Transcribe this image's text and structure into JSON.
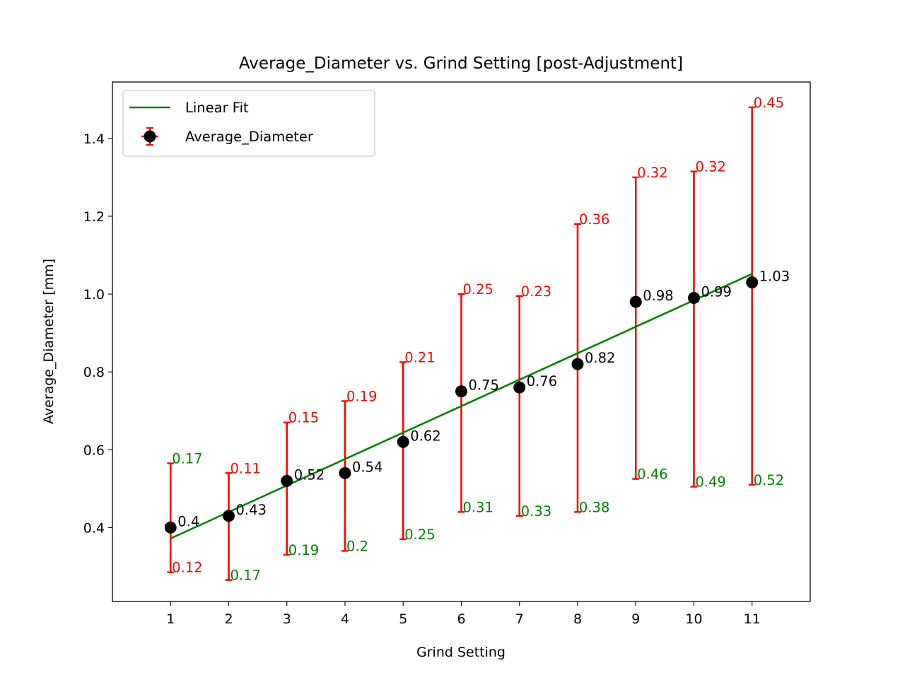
{
  "chart_data": {
    "type": "scatter",
    "title": "Average_Diameter vs. Grind Setting [post-Adjustment]",
    "xlabel": "Grind Setting",
    "ylabel": "Average_Diameter [mm]",
    "xlim": [
      0,
      12
    ],
    "ylim": [
      0.21,
      1.545
    ],
    "xticks": [
      1,
      2,
      3,
      4,
      5,
      6,
      7,
      8,
      9,
      10,
      11
    ],
    "xtick_labels": [
      "1",
      "2",
      "3",
      "4",
      "5",
      "6",
      "7",
      "8",
      "9",
      "10",
      "11"
    ],
    "yticks": [
      0.4,
      0.6,
      0.8,
      1.0,
      1.2,
      1.4
    ],
    "ytick_labels": [
      "0.4",
      "0.6",
      "0.8",
      "1.0",
      "1.2",
      "1.4"
    ],
    "grid": false,
    "legend": {
      "placement": "upper-left",
      "entries": [
        "Linear Fit",
        "Average_Diameter"
      ]
    },
    "series": [
      {
        "name": "Average_Diameter",
        "kind": "errorbar",
        "color": "#000000",
        "errorbar_color": "#ff0000",
        "x": [
          1,
          2,
          3,
          4,
          5,
          6,
          7,
          8,
          9,
          10,
          11
        ],
        "y": [
          0.4,
          0.43,
          0.52,
          0.54,
          0.62,
          0.75,
          0.76,
          0.82,
          0.98,
          0.99,
          1.03
        ],
        "value_labels": [
          "0.4",
          "0.43",
          "0.52",
          "0.54",
          "0.62",
          "0.75",
          "0.76",
          "0.82",
          "0.98",
          "0.99",
          "1.03"
        ],
        "err_upper": [
          0.165,
          0.11,
          0.15,
          0.185,
          0.205,
          0.25,
          0.235,
          0.36,
          0.32,
          0.325,
          0.45
        ],
        "err_lower": [
          0.115,
          0.165,
          0.19,
          0.2,
          0.25,
          0.31,
          0.33,
          0.38,
          0.455,
          0.485,
          0.52
        ],
        "err_upper_labels": [
          "0.17",
          "0.11",
          "0.15",
          "0.19",
          "0.21",
          "0.25",
          "0.23",
          "0.36",
          "0.32",
          "0.32",
          "0.45"
        ],
        "err_upper_label_colors": [
          "#008000",
          "#ff0000",
          "#ff0000",
          "#ff0000",
          "#ff0000",
          "#ff0000",
          "#ff0000",
          "#ff0000",
          "#ff0000",
          "#ff0000",
          "#ff0000"
        ],
        "err_lower_labels": [
          "0.12",
          "0.17",
          "0.19",
          "0.2",
          "0.25",
          "0.31",
          "0.33",
          "0.38",
          "0.46",
          "0.49",
          "0.52"
        ],
        "err_lower_label_colors": [
          "#ff0000",
          "#008000",
          "#008000",
          "#008000",
          "#008000",
          "#008000",
          "#008000",
          "#008000",
          "#008000",
          "#008000",
          "#008000"
        ]
      },
      {
        "name": "Linear Fit",
        "kind": "line",
        "color": "#008000",
        "x": [
          1,
          11
        ],
        "y": [
          0.372,
          1.052
        ]
      }
    ]
  }
}
